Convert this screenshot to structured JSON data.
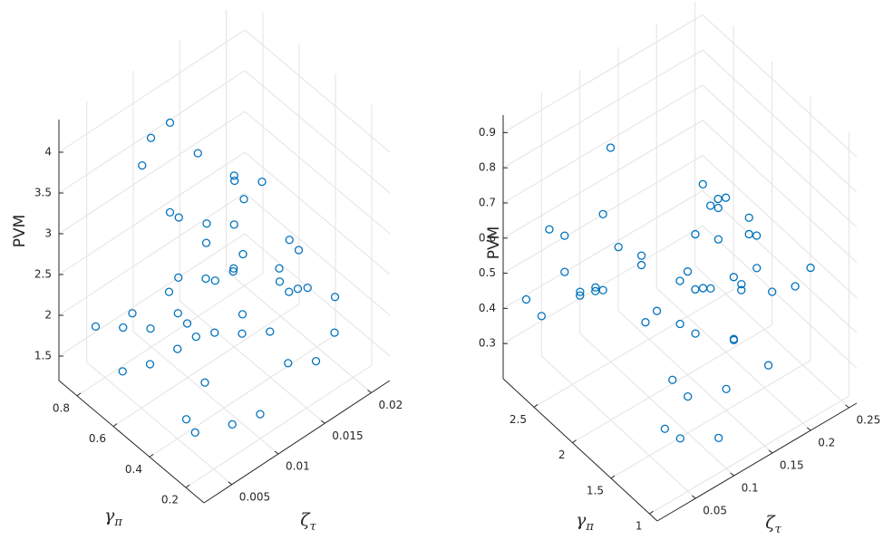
{
  "chart_data": [
    {
      "type": "scatter3d",
      "color": "#0072bd",
      "grid": true,
      "zlabel": "PVM",
      "ylabel": "γ",
      "ylabel_subscript": "π",
      "xlabel": "ζ",
      "xlabel_subscript": "τ",
      "xlim": [
        0.002,
        0.022
      ],
      "xticks": [
        0.005,
        0.01,
        0.015,
        0.02
      ],
      "ylim": [
        0.1,
        0.9
      ],
      "yticks": [
        0.2,
        0.4,
        0.6,
        0.8
      ],
      "zlim": [
        1.2,
        4.4
      ],
      "zticks": [
        1.5,
        2,
        2.5,
        3,
        3.5,
        4
      ],
      "x": [
        0.004,
        0.006,
        0.008,
        0.01,
        0.012,
        0.014,
        0.016,
        0.018,
        0.02,
        0.005,
        0.007,
        0.009,
        0.011,
        0.013,
        0.015,
        0.017,
        0.019,
        0.003,
        0.006,
        0.01,
        0.012,
        0.014,
        0.008,
        0.016,
        0.018,
        0.004,
        0.009,
        0.011,
        0.013,
        0.015,
        0.007,
        0.005,
        0.012,
        0.017,
        0.02,
        0.003,
        0.01,
        0.014,
        0.006,
        0.019,
        0.008,
        0.011,
        0.013,
        0.016,
        0.009,
        0.004,
        0.015,
        0.012,
        0.018,
        0.007
      ],
      "y": [
        0.8,
        0.7,
        0.6,
        0.5,
        0.4,
        0.3,
        0.2,
        0.6,
        0.3,
        0.4,
        0.2,
        0.8,
        0.7,
        0.5,
        0.6,
        0.4,
        0.5,
        0.6,
        0.3,
        0.2,
        0.8,
        0.7,
        0.5,
        0.4,
        0.2,
        0.3,
        0.6,
        0.4,
        0.3,
        0.8,
        0.5,
        0.7,
        0.6,
        0.7,
        0.5,
        0.2,
        0.3,
        0.5,
        0.6,
        0.4,
        0.7,
        0.5,
        0.2,
        0.3,
        0.4,
        0.5,
        0.6,
        0.8,
        0.7,
        0.4
      ],
      "z": [
        1.9,
        2.1,
        2.4,
        2.6,
        2.2,
        2.8,
        1.7,
        3.0,
        2.0,
        2.3,
        1.6,
        3.5,
        2.9,
        2.5,
        2.7,
        2.1,
        2.4,
        1.8,
        2.0,
        1.5,
        3.8,
        2.6,
        2.2,
        2.3,
        1.9,
        1.7,
        2.5,
        2.8,
        2.1,
        3.2,
        2.4,
        2.0,
        2.7,
        2.9,
        2.2,
        1.8,
        2.3,
        2.6,
        2.1,
        2.0,
        4.1,
        2.5,
        1.9,
        2.4,
        2.2,
        2.0,
        3.3,
        2.7,
        2.6,
        2.3
      ]
    },
    {
      "type": "scatter3d",
      "color": "#0072bd",
      "grid": true,
      "zlabel": "PVM",
      "ylabel": "γ",
      "ylabel_subscript": "π",
      "xlabel": "ζ",
      "xlabel_subscript": "τ",
      "xlim": [
        0,
        0.26
      ],
      "xticks": [
        0.05,
        0.1,
        0.15,
        0.2,
        0.25
      ],
      "ylim": [
        0.9,
        2.9
      ],
      "yticks": [
        1,
        1.5,
        2,
        2.5
      ],
      "zlim": [
        0.2,
        0.95
      ],
      "zticks": [
        0.3,
        0.4,
        0.5,
        0.6,
        0.7,
        0.8,
        0.9
      ],
      "x": [
        0.02,
        0.05,
        0.08,
        0.11,
        0.14,
        0.17,
        0.2,
        0.23,
        0.03,
        0.06,
        0.09,
        0.12,
        0.15,
        0.18,
        0.21,
        0.24,
        0.04,
        0.07,
        0.1,
        0.13,
        0.16,
        0.19,
        0.22,
        0.25,
        0.05,
        0.08,
        0.11,
        0.14,
        0.17,
        0.2,
        0.23,
        0.02,
        0.06,
        0.09,
        0.12,
        0.15,
        0.18,
        0.21,
        0.24,
        0.03,
        0.07,
        0.1,
        0.13,
        0.16,
        0.19,
        0.22,
        0.04,
        0.12,
        0.18,
        0.08
      ],
      "y": [
        2.8,
        2.6,
        2.4,
        2.2,
        2.0,
        1.8,
        1.6,
        1.4,
        2.7,
        2.5,
        2.3,
        2.1,
        1.9,
        1.7,
        1.5,
        1.3,
        1.2,
        1.4,
        1.6,
        1.8,
        2.0,
        2.2,
        2.4,
        2.6,
        1.1,
        1.3,
        1.5,
        1.7,
        1.9,
        2.1,
        2.3,
        2.5,
        2.7,
        1.0,
        1.2,
        1.4,
        1.6,
        1.8,
        2.0,
        2.2,
        2.4,
        2.6,
        2.8,
        1.5,
        1.7,
        1.9,
        2.1,
        2.3,
        1.25,
        1.85
      ],
      "z": [
        0.42,
        0.5,
        0.45,
        0.55,
        0.48,
        0.6,
        0.52,
        0.47,
        0.38,
        0.44,
        0.58,
        0.4,
        0.62,
        0.5,
        0.46,
        0.53,
        0.35,
        0.41,
        0.49,
        0.56,
        0.43,
        0.65,
        0.51,
        0.45,
        0.33,
        0.37,
        0.47,
        0.52,
        0.44,
        0.59,
        0.54,
        0.68,
        0.57,
        0.3,
        0.36,
        0.42,
        0.5,
        0.61,
        0.48,
        0.55,
        0.46,
        0.6,
        0.71,
        0.39,
        0.45,
        0.53,
        0.57,
        0.49,
        0.34,
        0.47
      ]
    }
  ]
}
